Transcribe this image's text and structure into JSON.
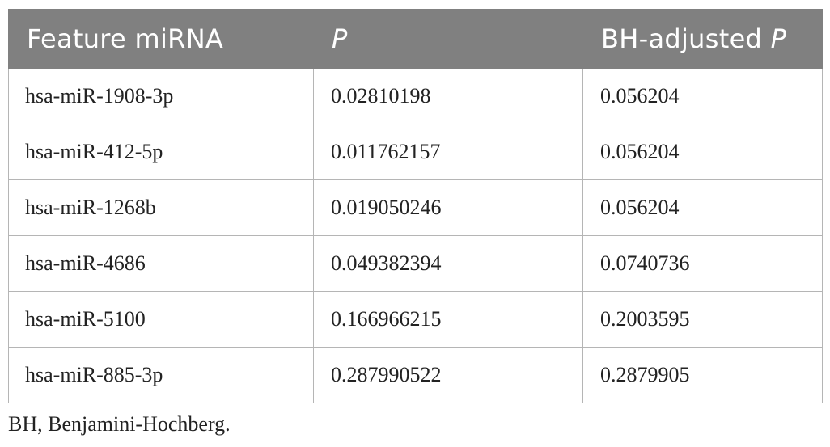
{
  "table": {
    "headers": [
      {
        "text": "Feature miRNA",
        "suffix": ""
      },
      {
        "text": "",
        "suffix": "P"
      },
      {
        "text": "BH-adjusted ",
        "suffix": "P"
      }
    ],
    "rows": [
      {
        "mirna": "hsa-miR-1908-3p",
        "p": "0.02810198",
        "bh_p": "0.056204"
      },
      {
        "mirna": "hsa-miR-412-5p",
        "p": "0.011762157",
        "bh_p": "0.056204"
      },
      {
        "mirna": "hsa-miR-1268b",
        "p": "0.019050246",
        "bh_p": "0.056204"
      },
      {
        "mirna": "hsa-miR-4686",
        "p": "0.049382394",
        "bh_p": "0.0740736"
      },
      {
        "mirna": "hsa-miR-5100",
        "p": "0.166966215",
        "bh_p": "0.2003595"
      },
      {
        "mirna": "hsa-miR-885-3p",
        "p": "0.287990522",
        "bh_p": "0.2879905"
      }
    ]
  },
  "footnote": "BH, Benjamini-Hochberg.",
  "colors": {
    "header_bg": "#808080",
    "header_text": "#ffffff",
    "border": "#b5b5b5",
    "body_text": "#222222"
  }
}
